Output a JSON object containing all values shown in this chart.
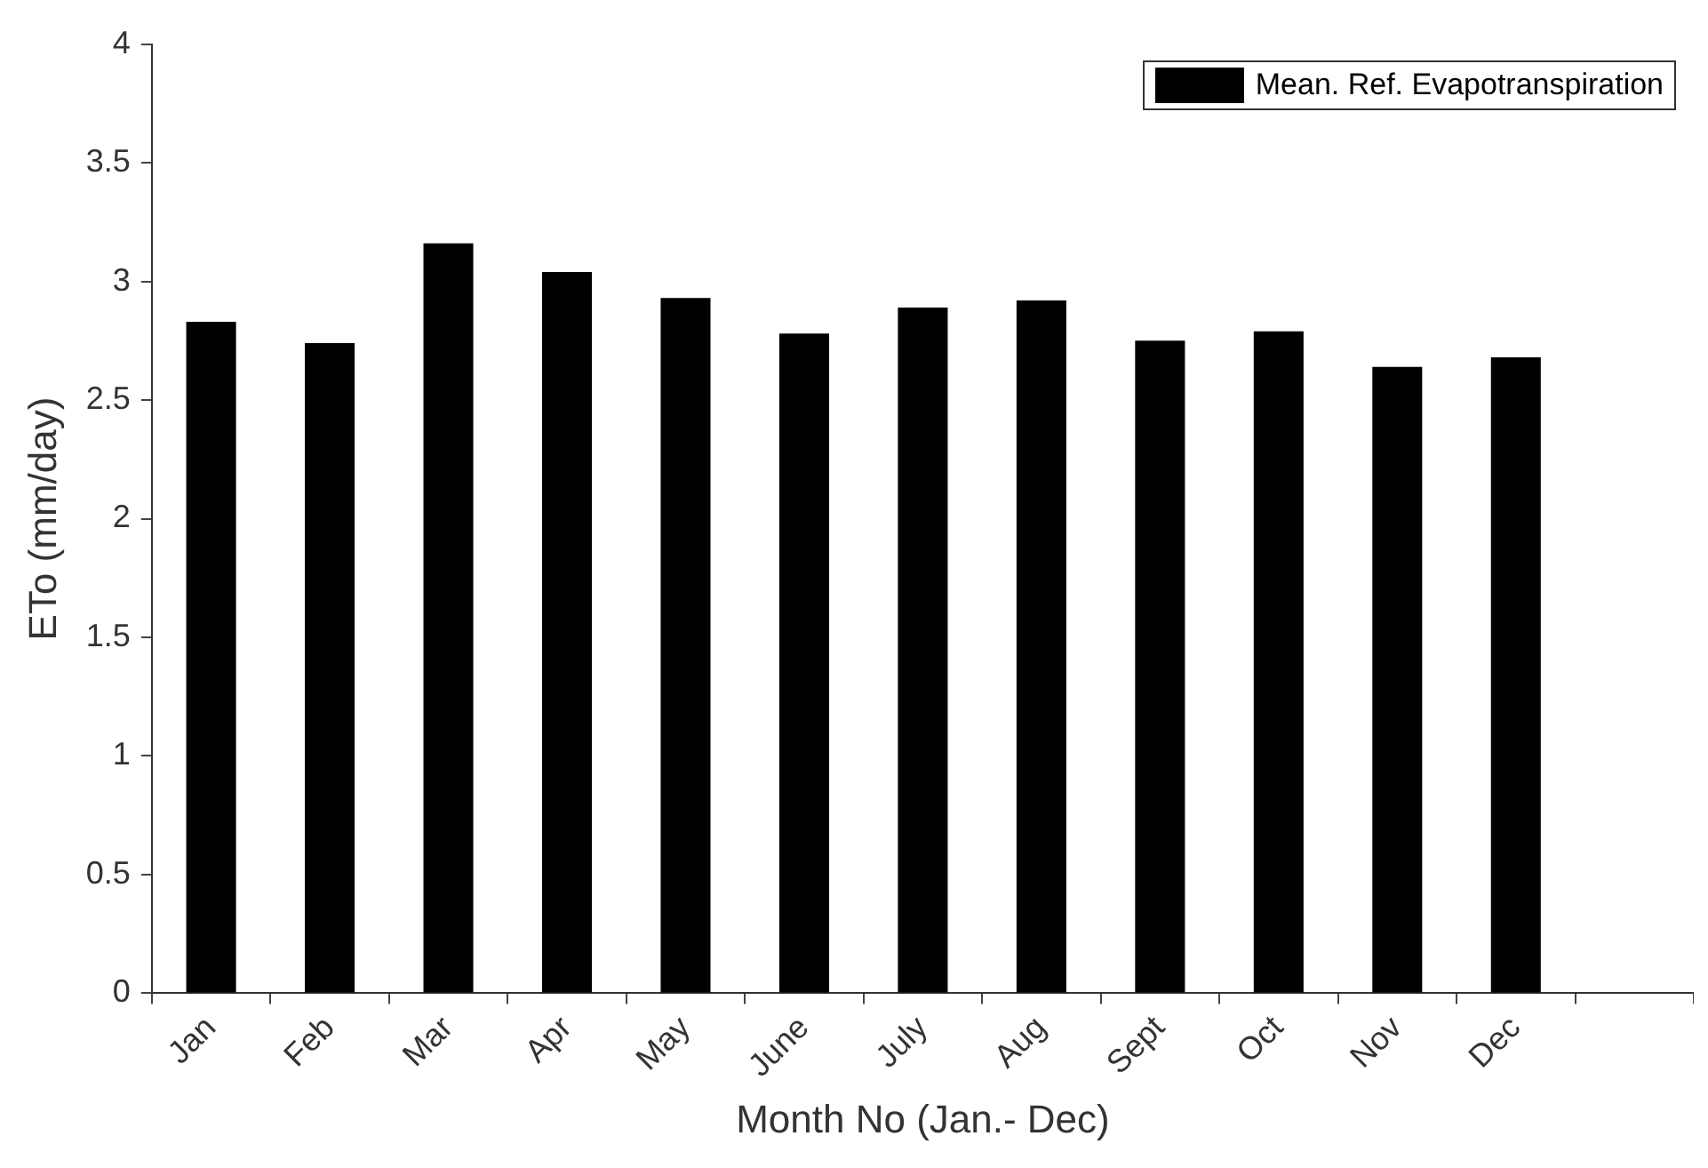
{
  "chart_data": {
    "type": "bar",
    "xlabel": "Month No (Jan.- Dec)",
    "ylabel": "ETo (mm/day)",
    "categories": [
      "Jan",
      "Feb",
      "Mar",
      "Apr",
      "May",
      "June",
      "July",
      "Aug",
      "Sept",
      "Oct",
      "Nov",
      "Dec",
      null
    ],
    "series": [
      {
        "name": "Mean. Ref. Evapotranspiration",
        "color": "#000000",
        "values": [
          2.83,
          2.74,
          3.16,
          3.04,
          2.93,
          2.78,
          2.89,
          2.92,
          2.75,
          2.79,
          2.64,
          2.68,
          null
        ]
      }
    ],
    "ylim": [
      0,
      4
    ],
    "yticks": [
      0,
      0.5,
      1,
      1.5,
      2,
      2.5,
      3,
      3.5,
      4
    ],
    "legend": "top right"
  }
}
